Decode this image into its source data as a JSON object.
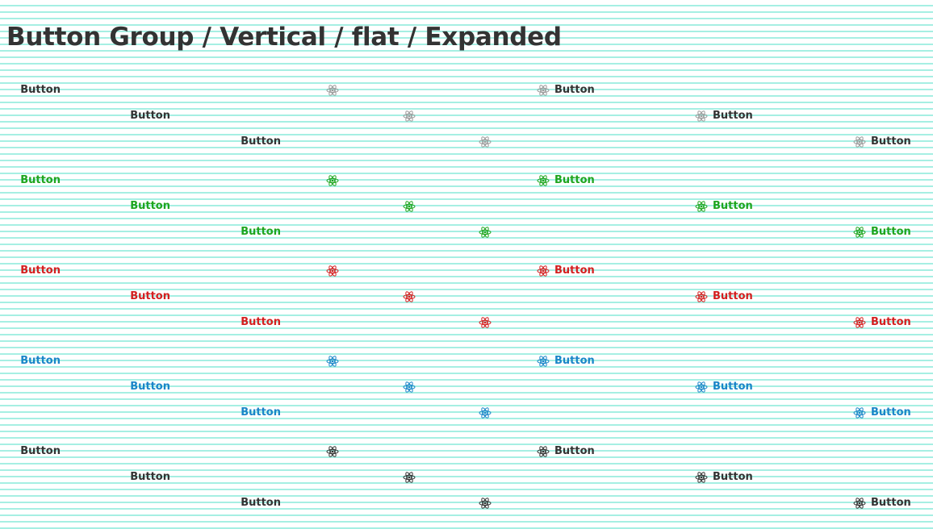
{
  "title": "Button Group / Vertical / flat / Expanded",
  "button_label": "Button",
  "icon": "atom-icon",
  "groups": [
    {
      "variant": "default",
      "text_color": "#333333",
      "icon_color": "#9a9a9a"
    },
    {
      "variant": "success",
      "text_color": "#1ea51e",
      "icon_color": "#1ea51e"
    },
    {
      "variant": "danger",
      "text_color": "#d32020",
      "icon_color": "#d32020"
    },
    {
      "variant": "primary",
      "text_color": "#1a86c8",
      "icon_color": "#1a86c8"
    },
    {
      "variant": "dark",
      "text_color": "#333333",
      "icon_color": "#333333"
    }
  ]
}
